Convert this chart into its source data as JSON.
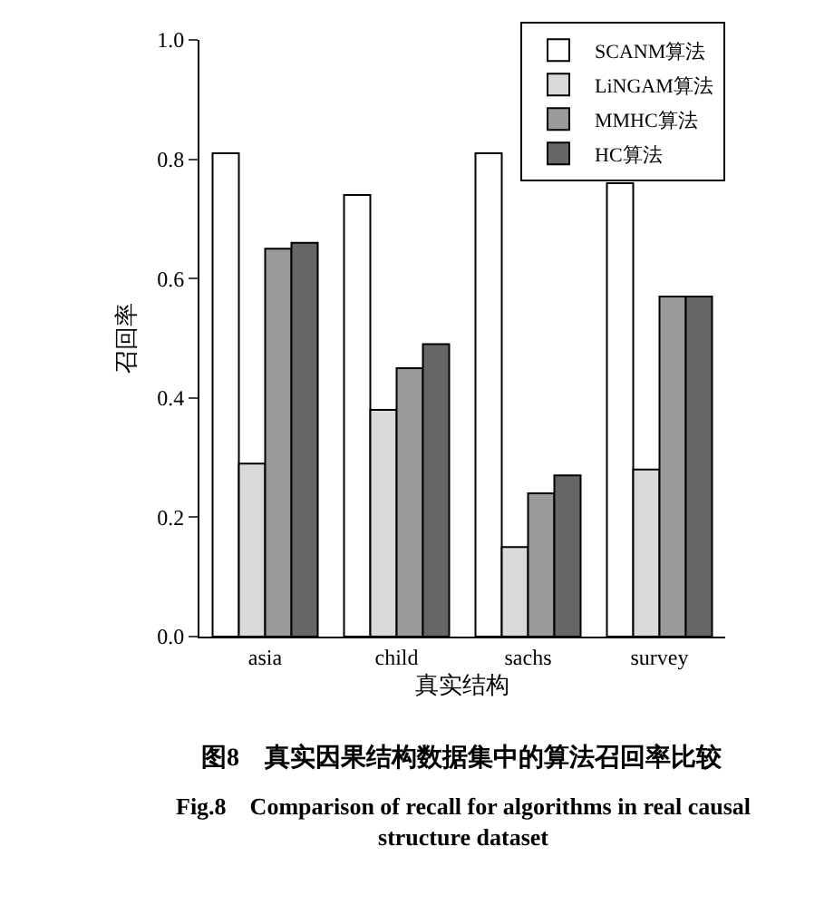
{
  "chart_data": {
    "type": "bar",
    "title": "图8　真实因果结构数据集中的算法召回率比较",
    "subtitle": "Fig.8　Comparison of recall for algorithms in real causal structure dataset",
    "xlabel": "真实结构",
    "ylabel": "召回率",
    "categories": [
      "asia",
      "child",
      "sachs",
      "survey"
    ],
    "series": [
      {
        "name": "SCANM算法",
        "color": "#ffffff",
        "values": [
          0.81,
          0.74,
          0.81,
          0.76
        ]
      },
      {
        "name": "LiNGAM算法",
        "color": "#d9d9d9",
        "values": [
          0.29,
          0.38,
          0.15,
          0.28
        ]
      },
      {
        "name": "MMHC算法",
        "color": "#9a9a9a",
        "values": [
          0.65,
          0.45,
          0.24,
          0.57
        ]
      },
      {
        "name": "HC算法",
        "color": "#666666",
        "values": [
          0.66,
          0.49,
          0.27,
          0.57
        ]
      }
    ],
    "ylim": [
      0,
      1
    ],
    "yticks": [
      {
        "value": 0,
        "label": "0.0"
      },
      {
        "value": 0.2,
        "label": "0.2"
      },
      {
        "value": 0.4,
        "label": "0.4"
      },
      {
        "value": 0.6,
        "label": "0.6"
      },
      {
        "value": 0.8,
        "label": "0.8"
      },
      {
        "value": 1,
        "label": "1.0"
      }
    ],
    "grid": false,
    "legend": "top right"
  }
}
